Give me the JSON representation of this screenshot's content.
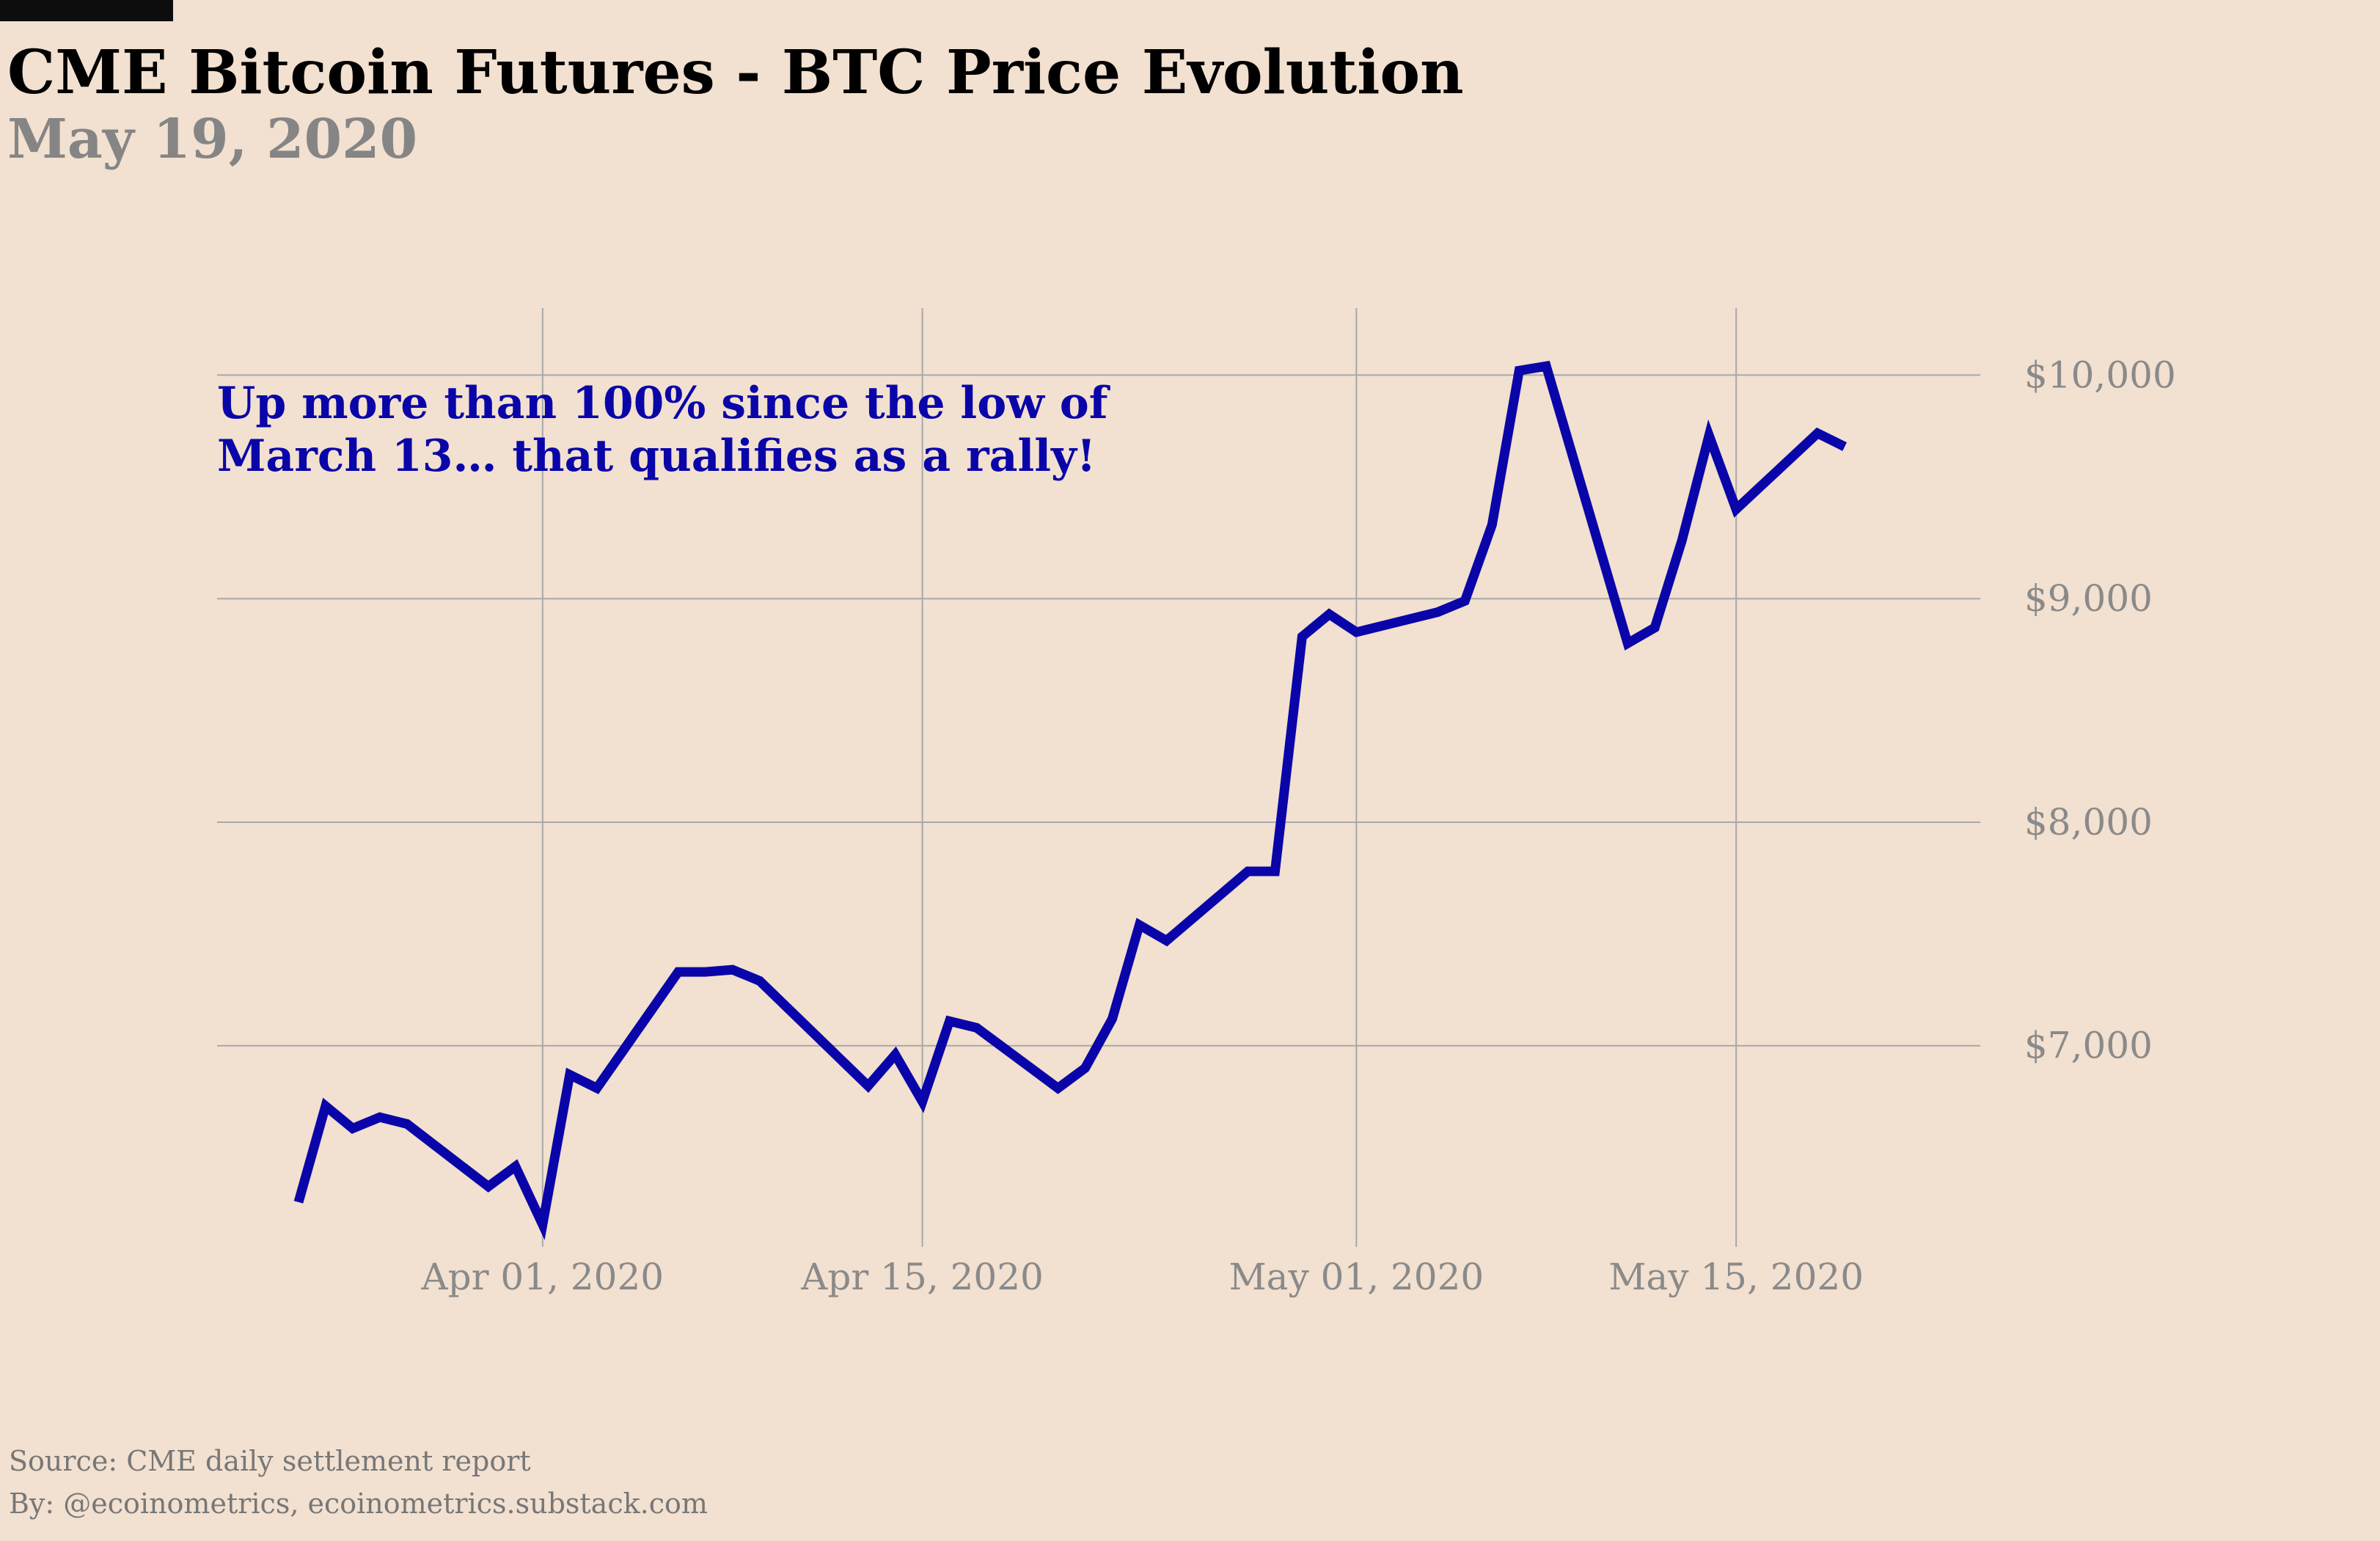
{
  "header": {
    "title": "CME Bitcoin Futures - BTC Price Evolution",
    "subtitle": "May 19, 2020"
  },
  "footer": {
    "source": "Source: CME daily settlement report",
    "byline": "By: @ecoinometrics, ecoinometrics.substack.com"
  },
  "colors": {
    "background": "#f2e0d0",
    "line": "#0a05a8",
    "annotation": "#0a05a8",
    "grid": "#a8a8a8",
    "tick_text": "#8a8a8a"
  },
  "chart_data": {
    "type": "line",
    "title": "CME Bitcoin Futures - BTC Price Evolution",
    "subtitle": "May 19, 2020",
    "xlabel": "",
    "ylabel": "",
    "xlim": [
      "2020-03-20",
      "2020-05-24"
    ],
    "ylim": [
      6100,
      10300
    ],
    "x_ticks": [
      "2020-04-01",
      "2020-04-15",
      "2020-05-01",
      "2020-05-15"
    ],
    "x_tick_labels": [
      "Apr 01, 2020",
      "Apr 15, 2020",
      "May 01, 2020",
      "May 15, 2020"
    ],
    "y_ticks": [
      7000,
      8000,
      9000,
      10000
    ],
    "y_tick_labels": [
      "$7,000",
      "$8,000",
      "$9,000",
      "$10,000"
    ],
    "y_axis_position": "right",
    "grid": true,
    "legend": "none",
    "annotations": [
      {
        "lines": [
          "Up more than 100% since the low of",
          "March 13… that qualifies as a rally!"
        ],
        "position": "top-left"
      }
    ],
    "series": [
      {
        "x": [
          "2020-03-23",
          "2020-03-24",
          "2020-03-25",
          "2020-03-26",
          "2020-03-27",
          "2020-03-30",
          "2020-03-31",
          "2020-04-01",
          "2020-04-02",
          "2020-04-03",
          "2020-04-06",
          "2020-04-07",
          "2020-04-08",
          "2020-04-09",
          "2020-04-13",
          "2020-04-14",
          "2020-04-15",
          "2020-04-16",
          "2020-04-17",
          "2020-04-20",
          "2020-04-21",
          "2020-04-22",
          "2020-04-23",
          "2020-04-24",
          "2020-04-27",
          "2020-04-28",
          "2020-04-29",
          "2020-04-30",
          "2020-05-01",
          "2020-05-04",
          "2020-05-05",
          "2020-05-06",
          "2020-05-07",
          "2020-05-08",
          "2020-05-11",
          "2020-05-12",
          "2020-05-13",
          "2020-05-14",
          "2020-05-15",
          "2020-05-18",
          "2020-05-19"
        ],
        "values": [
          6300,
          6730,
          6630,
          6680,
          6650,
          6370,
          6460,
          6200,
          6870,
          6810,
          7330,
          7330,
          7340,
          7290,
          6820,
          6960,
          6750,
          7110,
          7080,
          6810,
          6900,
          7120,
          7540,
          7470,
          7780,
          7780,
          8830,
          8930,
          8850,
          8940,
          8990,
          9330,
          10020,
          10040,
          8800,
          8870,
          9260,
          9730,
          9400,
          9740,
          9680
        ]
      }
    ]
  }
}
